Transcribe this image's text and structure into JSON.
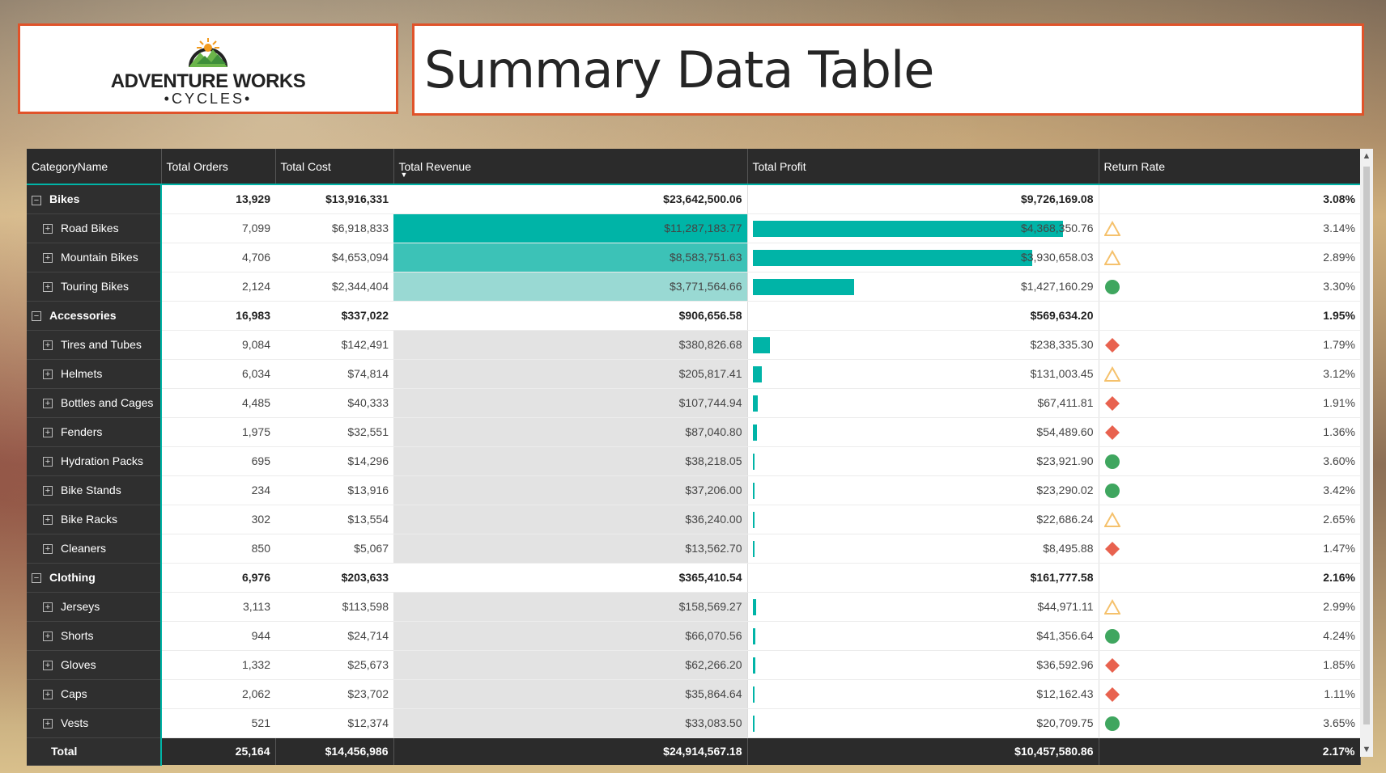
{
  "logo": {
    "line1": "ADVENTURE WORKS",
    "line2": "•CYCLES•"
  },
  "title": "Summary Data Table",
  "columns": [
    "CategoryName",
    "Total Orders",
    "Total Cost",
    "Total Revenue",
    "Total Profit",
    "Return Rate"
  ],
  "sorted_column": "Total Revenue",
  "colors": {
    "accent": "#00b4a7",
    "header_bg": "#2b2b2b",
    "frame": "#e0532a",
    "warn": "#f5c16c",
    "bad": "#e8624f",
    "good": "#3fa65f"
  },
  "rows": [
    {
      "type": "group",
      "name": "Bikes",
      "orders": "13,929",
      "cost": "$13,916,331",
      "revenue": "$23,642,500.06",
      "profit": "$9,726,169.08",
      "return_rate": "3.08%"
    },
    {
      "type": "child",
      "name": "Road Bikes",
      "orders": "7,099",
      "cost": "$6,918,833",
      "revenue": "$11,287,183.77",
      "profit": "$4,368,350.76",
      "return_rate": "3.14%",
      "kpi": "warning-triangle-icon",
      "rev_shade": "#00b4a7",
      "profit_bar": 1.0
    },
    {
      "type": "child",
      "name": "Mountain Bikes",
      "orders": "4,706",
      "cost": "$4,653,094",
      "revenue": "$8,583,751.63",
      "profit": "$3,930,658.03",
      "return_rate": "2.89%",
      "kpi": "warning-triangle-icon",
      "rev_shade": "#3cc2b7",
      "profit_bar": 0.9
    },
    {
      "type": "child",
      "name": "Touring Bikes",
      "orders": "2,124",
      "cost": "$2,344,404",
      "revenue": "$3,771,564.66",
      "profit": "$1,427,160.29",
      "return_rate": "3.30%",
      "kpi": "good-circle-icon",
      "rev_shade": "#99d9d3",
      "profit_bar": 0.327
    },
    {
      "type": "group",
      "name": "Accessories",
      "orders": "16,983",
      "cost": "$337,022",
      "revenue": "$906,656.58",
      "profit": "$569,634.20",
      "return_rate": "1.95%"
    },
    {
      "type": "child",
      "name": "Tires and Tubes",
      "orders": "9,084",
      "cost": "$142,491",
      "revenue": "$380,826.68",
      "profit": "$238,335.30",
      "return_rate": "1.79%",
      "kpi": "bad-diamond-icon",
      "rev_shade": "#e3e3e3",
      "profit_bar": 0.055
    },
    {
      "type": "child",
      "name": "Helmets",
      "orders": "6,034",
      "cost": "$74,814",
      "revenue": "$205,817.41",
      "profit": "$131,003.45",
      "return_rate": "3.12%",
      "kpi": "warning-triangle-icon",
      "rev_shade": "#e3e3e3",
      "profit_bar": 0.03
    },
    {
      "type": "child",
      "name": "Bottles and Cages",
      "orders": "4,485",
      "cost": "$40,333",
      "revenue": "$107,744.94",
      "profit": "$67,411.81",
      "return_rate": "1.91%",
      "kpi": "bad-diamond-icon",
      "rev_shade": "#e3e3e3",
      "profit_bar": 0.015
    },
    {
      "type": "child",
      "name": "Fenders",
      "orders": "1,975",
      "cost": "$32,551",
      "revenue": "$87,040.80",
      "profit": "$54,489.60",
      "return_rate": "1.36%",
      "kpi": "bad-diamond-icon",
      "rev_shade": "#e3e3e3",
      "profit_bar": 0.012
    },
    {
      "type": "child",
      "name": "Hydration Packs",
      "orders": "695",
      "cost": "$14,296",
      "revenue": "$38,218.05",
      "profit": "$23,921.90",
      "return_rate": "3.60%",
      "kpi": "good-circle-icon",
      "rev_shade": "#e3e3e3",
      "profit_bar": 0.006
    },
    {
      "type": "child",
      "name": "Bike Stands",
      "orders": "234",
      "cost": "$13,916",
      "revenue": "$37,206.00",
      "profit": "$23,290.02",
      "return_rate": "3.42%",
      "kpi": "good-circle-icon",
      "rev_shade": "#e3e3e3",
      "profit_bar": 0.006
    },
    {
      "type": "child",
      "name": "Bike Racks",
      "orders": "302",
      "cost": "$13,554",
      "revenue": "$36,240.00",
      "profit": "$22,686.24",
      "return_rate": "2.65%",
      "kpi": "warning-triangle-icon",
      "rev_shade": "#e3e3e3",
      "profit_bar": 0.005
    },
    {
      "type": "child",
      "name": "Cleaners",
      "orders": "850",
      "cost": "$5,067",
      "revenue": "$13,562.70",
      "profit": "$8,495.88",
      "return_rate": "1.47%",
      "kpi": "bad-diamond-icon",
      "rev_shade": "#e3e3e3",
      "profit_bar": 0.002
    },
    {
      "type": "group",
      "name": "Clothing",
      "orders": "6,976",
      "cost": "$203,633",
      "revenue": "$365,410.54",
      "profit": "$161,777.58",
      "return_rate": "2.16%"
    },
    {
      "type": "child",
      "name": "Jerseys",
      "orders": "3,113",
      "cost": "$113,598",
      "revenue": "$158,569.27",
      "profit": "$44,971.11",
      "return_rate": "2.99%",
      "kpi": "warning-triangle-icon",
      "rev_shade": "#e3e3e3",
      "profit_bar": 0.01
    },
    {
      "type": "child",
      "name": "Shorts",
      "orders": "944",
      "cost": "$24,714",
      "revenue": "$66,070.56",
      "profit": "$41,356.64",
      "return_rate": "4.24%",
      "kpi": "good-circle-icon",
      "rev_shade": "#e3e3e3",
      "profit_bar": 0.009
    },
    {
      "type": "child",
      "name": "Gloves",
      "orders": "1,332",
      "cost": "$25,673",
      "revenue": "$62,266.20",
      "profit": "$36,592.96",
      "return_rate": "1.85%",
      "kpi": "bad-diamond-icon",
      "rev_shade": "#e3e3e3",
      "profit_bar": 0.008
    },
    {
      "type": "child",
      "name": "Caps",
      "orders": "2,062",
      "cost": "$23,702",
      "revenue": "$35,864.64",
      "profit": "$12,162.43",
      "return_rate": "1.11%",
      "kpi": "bad-diamond-icon",
      "rev_shade": "#e3e3e3",
      "profit_bar": 0.003
    },
    {
      "type": "child",
      "name": "Vests",
      "orders": "521",
      "cost": "$12,374",
      "revenue": "$33,083.50",
      "profit": "$20,709.75",
      "return_rate": "3.65%",
      "kpi": "good-circle-icon",
      "rev_shade": "#e3e3e3",
      "profit_bar": 0.005
    }
  ],
  "total": {
    "name": "Total",
    "orders": "25,164",
    "cost": "$14,456,986",
    "revenue": "$24,914,567.18",
    "profit": "$10,457,580.86",
    "return_rate": "2.17%"
  }
}
